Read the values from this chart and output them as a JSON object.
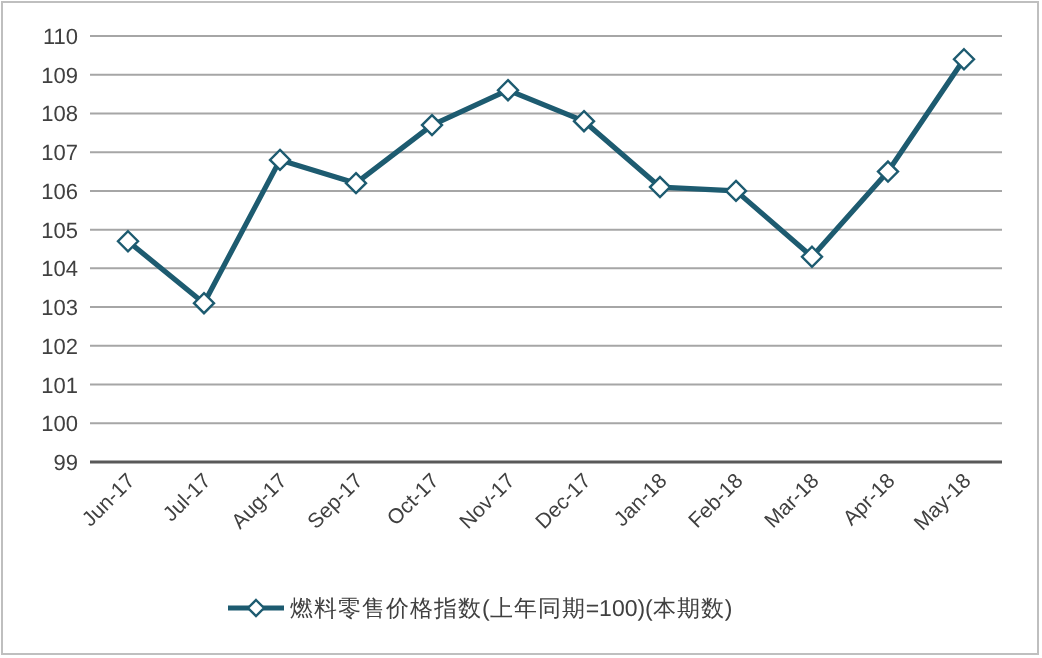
{
  "chart_data": {
    "type": "line",
    "categories": [
      "Jun-17",
      "Jul-17",
      "Aug-17",
      "Sep-17",
      "Oct-17",
      "Nov-17",
      "Dec-17",
      "Jan-18",
      "Feb-18",
      "Mar-18",
      "Apr-18",
      "May-18"
    ],
    "series": [
      {
        "name": "燃料零售价格指数(上年同期=100)(本期数)",
        "color": "#1d5b70",
        "values": [
          104.7,
          103.1,
          106.8,
          106.2,
          107.7,
          108.6,
          107.8,
          106.1,
          106.0,
          104.3,
          106.5,
          109.4
        ]
      }
    ],
    "ylim": [
      99,
      110
    ],
    "yticks": [
      99,
      100,
      101,
      102,
      103,
      104,
      105,
      106,
      107,
      108,
      109,
      110
    ],
    "grid": "y",
    "legend": "bottom",
    "marker": "diamond",
    "line_style": "solid"
  }
}
